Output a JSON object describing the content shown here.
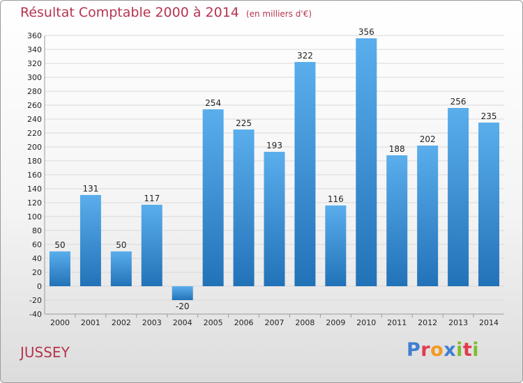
{
  "chart_data": {
    "type": "bar",
    "title": "Résultat Comptable 2000 à 2014",
    "unit_note": "(en milliers d'€)",
    "categories": [
      "2000",
      "2001",
      "2002",
      "2003",
      "2004",
      "2005",
      "2006",
      "2007",
      "2008",
      "2009",
      "2010",
      "2011",
      "2012",
      "2013",
      "2014"
    ],
    "values": [
      50,
      131,
      50,
      117,
      -20,
      254,
      225,
      193,
      322,
      116,
      356,
      188,
      202,
      256,
      235
    ],
    "value_labels": [
      "50",
      "131",
      "50",
      "117",
      "-20",
      "254",
      "225",
      "193",
      "322",
      "116",
      "356",
      "188",
      "202",
      "256",
      "235"
    ],
    "ylim": [
      -40,
      360
    ],
    "ytick_step": 20,
    "grid": true,
    "xlabel": "",
    "ylabel": ""
  },
  "footer": {
    "city": "JUSSEY",
    "logo_letters": [
      "P",
      "r",
      "o",
      "x",
      "i",
      "t",
      "i"
    ],
    "logo_colors": [
      "#3f7fd0",
      "#e2394e",
      "#f39a1f",
      "#3f7fd0",
      "#7bbf2a",
      "#e2394e",
      "#7bbf2a"
    ]
  },
  "colors": {
    "bar_light": "#5aaeec",
    "bar_dark": "#2272b8",
    "title": "#b5344f"
  }
}
